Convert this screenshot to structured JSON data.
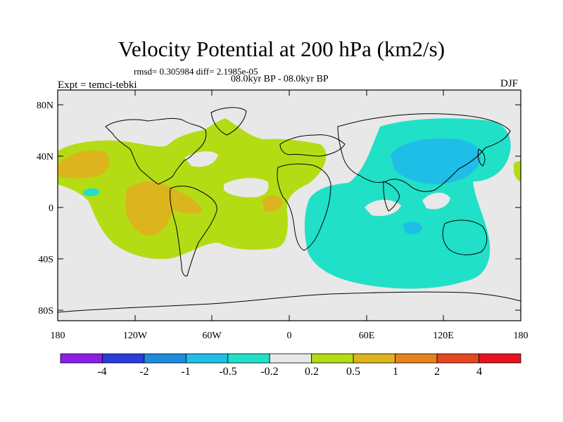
{
  "title": "Velocity Potential at 200 hPa (km2/s)",
  "stats": "rmsd= 0.305984 diff= 2.1985e-05",
  "period": "08.0kyr BP - 08.0kyr BP",
  "experiment": "Expt = temci-tebki",
  "season": "DJF",
  "lat_labels": [
    "80N",
    "40N",
    "0",
    "40S",
    "80S"
  ],
  "lon_labels": [
    "180",
    "120W",
    "60W",
    "0",
    "60E",
    "120E",
    "180"
  ],
  "colorbar": {
    "labels": [
      "-4",
      "-2",
      "-1",
      "-0.5",
      "-0.2",
      "0.2",
      "0.5",
      "1",
      "2",
      "4"
    ],
    "colors": [
      "#8c1ee6",
      "#2a3cdc",
      "#1e8cdc",
      "#1ebee6",
      "#20e0c8",
      "#e8e8e8",
      "#b4dc14",
      "#dcb41e",
      "#e6821e",
      "#e6461e",
      "#e6141e"
    ]
  },
  "ocean_color": "#e8e8e8"
}
